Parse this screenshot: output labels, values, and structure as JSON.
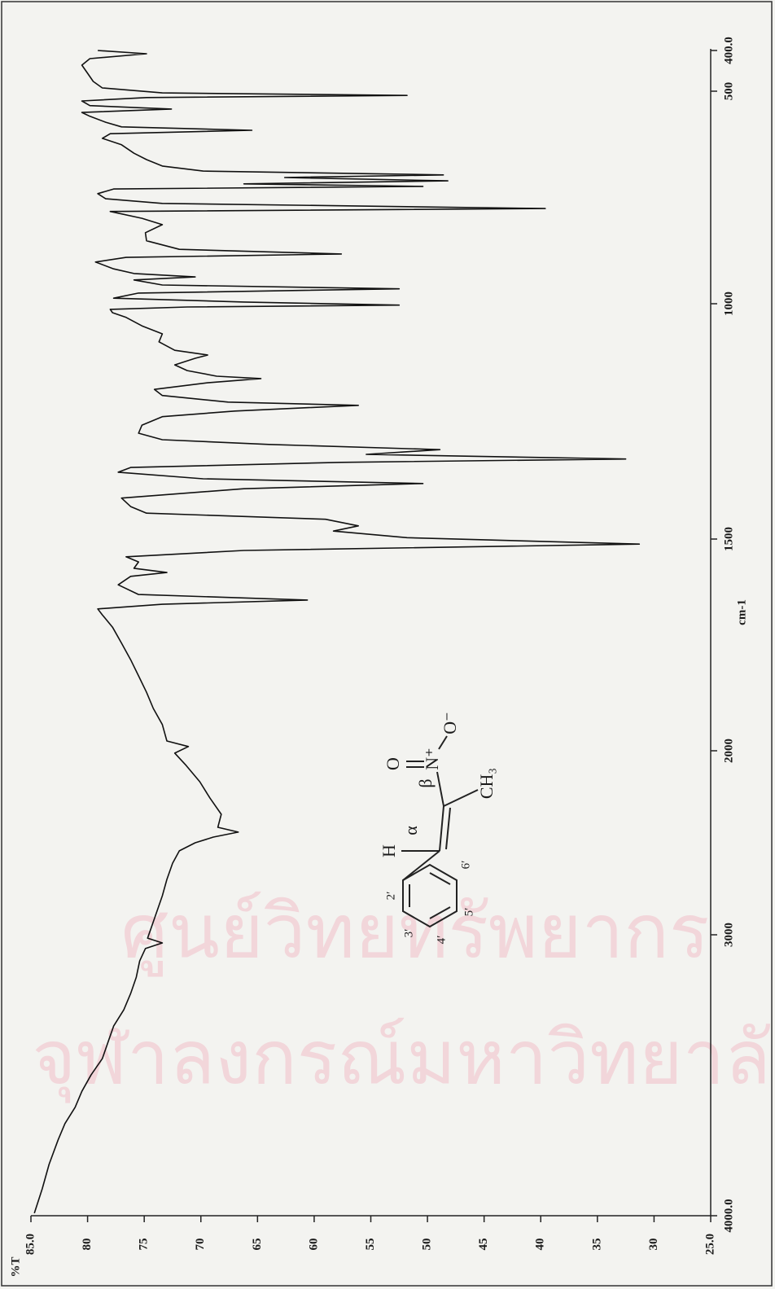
{
  "chart_data": {
    "type": "line",
    "xlabel": "cm-1",
    "ylabel": "%T",
    "color": "#111111",
    "xlim": [
      4000,
      400
    ],
    "ylim": [
      25,
      85
    ],
    "xticks": [
      {
        "value": 4000,
        "label": "4000.0"
      },
      3000,
      2000,
      1500,
      1000,
      500,
      {
        "value": 400,
        "label": "400.0"
      }
    ],
    "yticks": [
      {
        "value": 85,
        "label": "85.0"
      },
      80,
      75,
      70,
      65,
      60,
      55,
      50,
      45,
      40,
      35,
      30,
      {
        "value": 25,
        "label": "25.0"
      }
    ],
    "x": [
      3991,
      3904,
      3817,
      3730,
      3672,
      3614,
      3557,
      3499,
      3441,
      3383,
      3325,
      3267,
      3209,
      3151,
      3093,
      3049,
      3029,
      3012,
      2965,
      2876,
      2788,
      2699,
      2611,
      2544,
      2500,
      2469,
      2442,
      2416,
      2345,
      2257,
      2168,
      2080,
      2013,
      1990,
      1977,
      1938,
      1900,
      1862,
      1823,
      1785,
      1746,
      1708,
      1679,
      1665,
      1654,
      1644,
      1631,
      1608,
      1588,
      1579,
      1569,
      1554,
      1542,
      1527,
      1512,
      1497,
      1483,
      1472,
      1458,
      1445,
      1431,
      1413,
      1393,
      1382,
      1372,
      1358,
      1348,
      1337,
      1330,
      1320,
      1310,
      1299,
      1289,
      1275,
      1258,
      1240,
      1228,
      1216,
      1209,
      1195,
      1182,
      1168,
      1159,
      1154,
      1142,
      1130,
      1116,
      1109,
      1099,
      1081,
      1064,
      1047,
      1029,
      1019,
      1012,
      1007,
      1003,
      996,
      987,
      975,
      965,
      956,
      944,
      937,
      929,
      918,
      902,
      891,
      883,
      872,
      852,
      833,
      814,
      799,
      783,
      776,
      764,
      753,
      741,
      730,
      724,
      718,
      711,
      703,
      697,
      688,
      676,
      661,
      646,
      626,
      611,
      600,
      592,
      584,
      573,
      559,
      550,
      542,
      534,
      523,
      515,
      510,
      504,
      492,
      476,
      456,
      436,
      420,
      408,
      400
    ],
    "values": [
      84.7,
      84.0,
      83.4,
      82.6,
      82.0,
      81.1,
      80.5,
      79.7,
      78.7,
      78.2,
      77.7,
      76.8,
      76.2,
      75.7,
      75.4,
      74.9,
      73.4,
      74.7,
      74.4,
      73.9,
      73.4,
      73.0,
      72.5,
      71.9,
      70.5,
      68.9,
      66.7,
      68.5,
      68.2,
      69.2,
      70.1,
      71.3,
      72.3,
      71.1,
      73.0,
      73.4,
      74.2,
      74.8,
      75.5,
      76.2,
      77.0,
      77.8,
      78.7,
      79.1,
      73.4,
      60.6,
      75.5,
      77.3,
      76.2,
      73.0,
      75.9,
      75.5,
      76.6,
      66.2,
      31.3,
      51.8,
      58.3,
      56.1,
      59.0,
      74.8,
      76.2,
      77.0,
      66.2,
      50.4,
      69.8,
      77.3,
      76.2,
      57.6,
      32.5,
      55.4,
      48.9,
      64.0,
      73.4,
      75.5,
      75.2,
      73.4,
      67.0,
      56.1,
      67.6,
      73.4,
      74.1,
      69.4,
      64.7,
      68.6,
      71.2,
      72.3,
      70.5,
      69.4,
      72.3,
      73.7,
      73.4,
      75.2,
      76.6,
      77.8,
      78.0,
      71.2,
      52.5,
      66.2,
      77.7,
      75.5,
      52.5,
      73.4,
      75.9,
      70.5,
      75.9,
      77.7,
      79.3,
      76.6,
      57.6,
      71.9,
      74.8,
      74.9,
      73.4,
      75.2,
      78.0,
      39.6,
      73.4,
      78.4,
      79.1,
      77.7,
      50.4,
      66.2,
      48.2,
      62.6,
      48.6,
      69.8,
      73.4,
      74.8,
      75.9,
      77.0,
      78.7,
      78.0,
      65.5,
      77.0,
      78.4,
      79.8,
      80.5,
      72.6,
      79.8,
      80.5,
      74.8,
      51.8,
      73.4,
      78.7,
      79.5,
      80.0,
      80.5,
      79.8,
      74.8,
      79.1
    ],
    "structure_labels": [
      "H",
      "α",
      "β",
      "O",
      "N⁺",
      "O⁻",
      "CH₃",
      "2′",
      "3′",
      "4′",
      "5′",
      "6′"
    ],
    "watermark": [
      "ศูนย์วิทยทรัพยากร",
      "จุฬาลงกรณ์มหาวิทยาลัย"
    ]
  }
}
